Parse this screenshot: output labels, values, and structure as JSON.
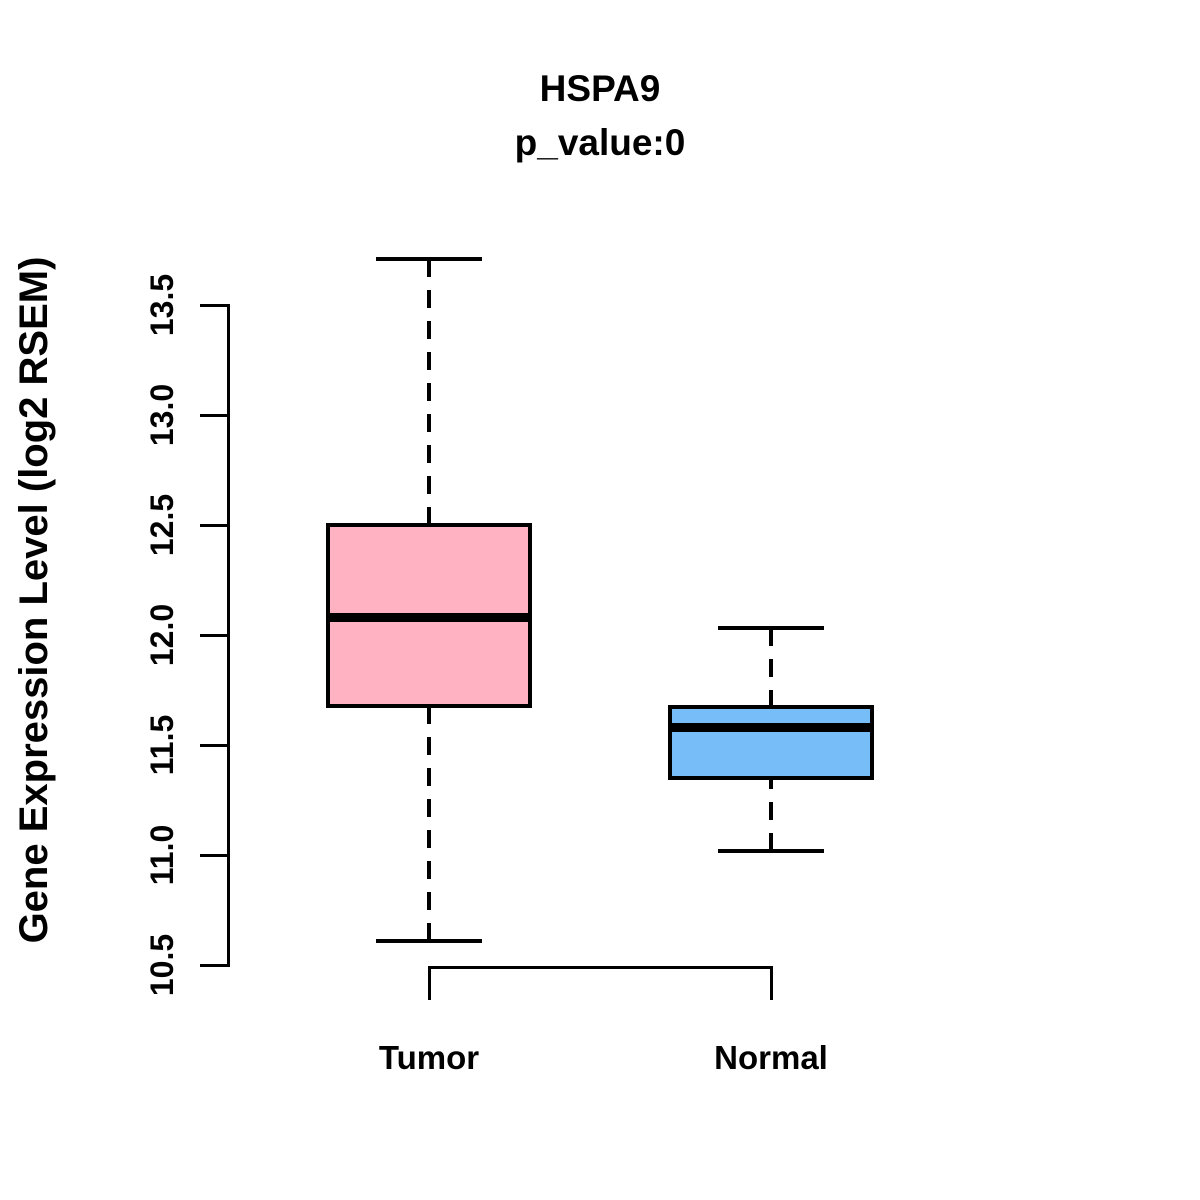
{
  "chart_data": {
    "type": "boxplot",
    "title": "HSPA9",
    "subtitle": "p_value:0",
    "ylabel": "Gene Expression Level (log2 RSEM)",
    "xlabel": "",
    "ylim": [
      10.4,
      13.8
    ],
    "grid": false,
    "legend_position": "none",
    "ytick_labels": [
      "10.5",
      "11.0",
      "11.5",
      "12.0",
      "12.5",
      "13.0",
      "13.5"
    ],
    "ytick_values": [
      10.5,
      11.0,
      11.5,
      12.0,
      12.5,
      13.0,
      13.5
    ],
    "groups": [
      {
        "label": "Tumor",
        "color": "#FFB3C2",
        "border_color": "#000000",
        "stats": {
          "whisker_low": 10.61,
          "q1": 11.67,
          "median": 12.08,
          "q3": 12.51,
          "whisker_high": 13.71
        }
      },
      {
        "label": "Normal",
        "color": "#77BDF8",
        "border_color": "#000000",
        "stats": {
          "whisker_low": 11.02,
          "q1": 11.34,
          "median": 11.58,
          "q3": 11.68,
          "whisker_high": 12.03
        }
      }
    ]
  }
}
